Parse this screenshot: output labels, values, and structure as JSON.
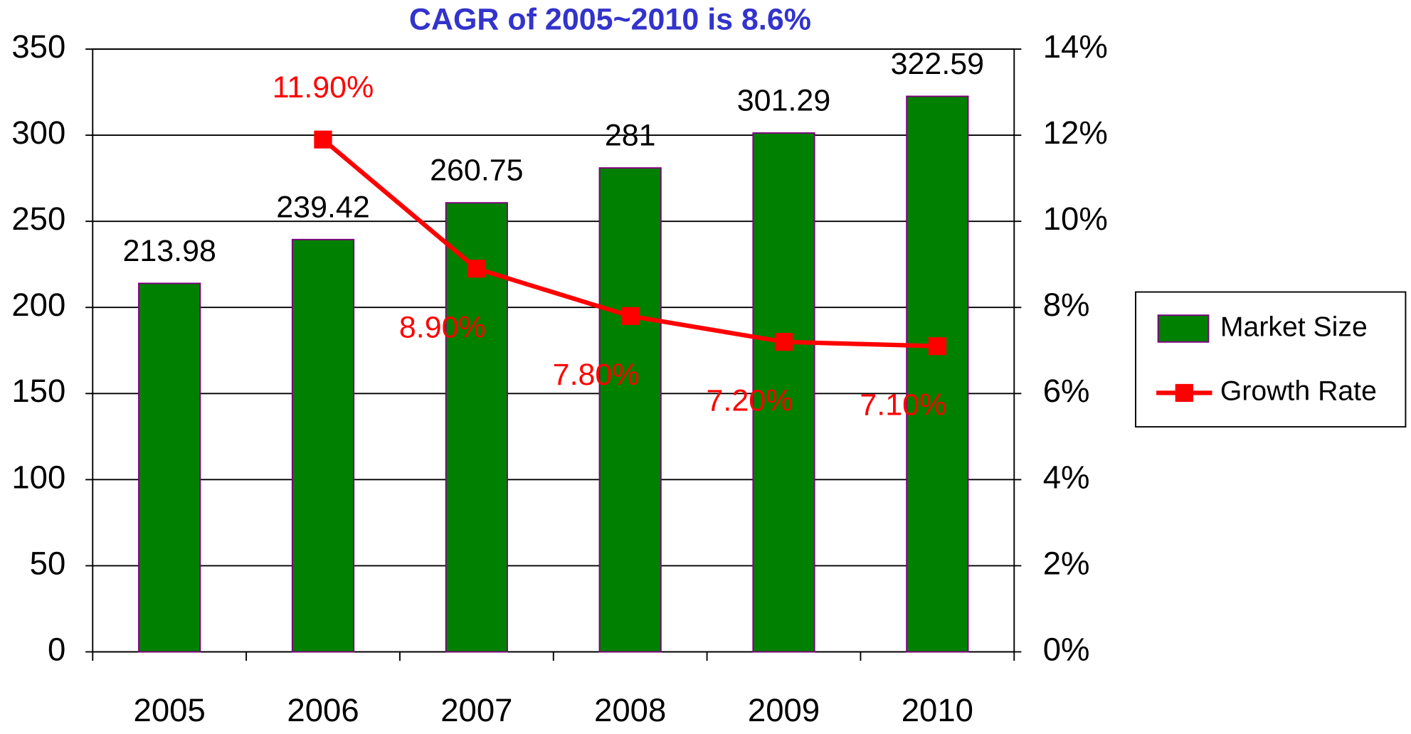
{
  "chart_data": {
    "type": "bar",
    "title": "CAGR of  2005~2010 is 8.6%",
    "categories": [
      "2005",
      "2006",
      "2007",
      "2008",
      "2009",
      "2010"
    ],
    "series": [
      {
        "name": "Market Size",
        "type": "bar",
        "color": "#008000",
        "values": [
          213.98,
          239.42,
          260.75,
          281,
          301.29,
          322.59
        ]
      },
      {
        "name": "Growth Rate",
        "type": "line",
        "axis": "y2",
        "color": "#ff0000",
        "values": [
          null,
          11.9,
          8.9,
          7.8,
          7.2,
          7.1
        ],
        "value_labels": [
          null,
          "11.90%",
          "8.90%",
          "7.80%",
          "7.20%",
          "7.10%"
        ]
      }
    ],
    "ylim": [
      0,
      350
    ],
    "yticks": [
      0,
      50,
      100,
      150,
      200,
      250,
      300,
      350
    ],
    "y2lim": [
      0,
      14
    ],
    "y2ticks": [
      {
        "value": 0,
        "label": "0%"
      },
      {
        "value": 2,
        "label": "2%"
      },
      {
        "value": 4,
        "label": "4%"
      },
      {
        "value": 6,
        "label": "6%"
      },
      {
        "value": 8,
        "label": "8%"
      },
      {
        "value": 10,
        "label": "10%"
      },
      {
        "value": 12,
        "label": "12%"
      },
      {
        "value": 14,
        "label": "14%"
      }
    ],
    "grid": true,
    "legend": "right"
  }
}
